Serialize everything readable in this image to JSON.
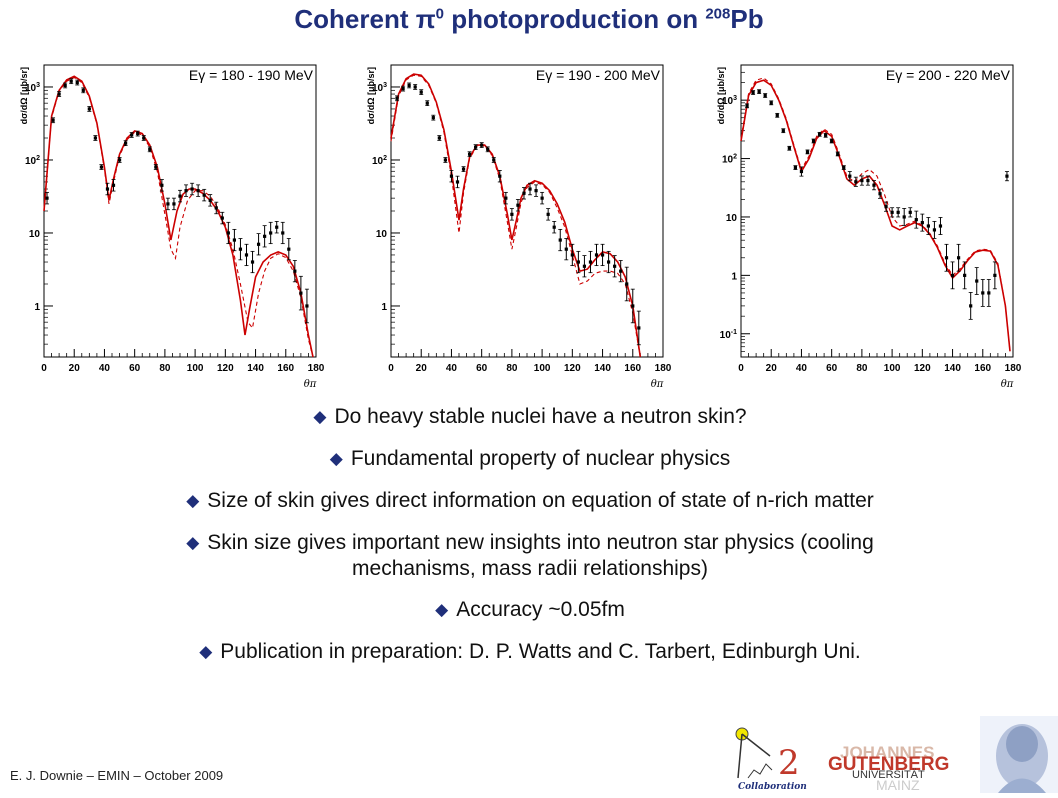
{
  "slide": {
    "title_main": "Coherent π",
    "title_sup1": "0",
    "title_mid": " photoproduction on ",
    "title_sup2": "208",
    "title_end": "Pb",
    "footer": "E. J. Downie – EMIN – October 2009"
  },
  "bullets": [
    {
      "line1": "Do heavy stable nuclei have a neutron skin?",
      "line2": ""
    },
    {
      "line1": "Fundamental property of nuclear physics",
      "line2": ""
    },
    {
      "line1": "Size of skin gives direct information on equation of state of n-rich matter",
      "line2": ""
    },
    {
      "line1": "Skin size gives important new insights into neutron star physics (cooling",
      "line2": "mechanisms, mass radii relationships)"
    },
    {
      "line1": "Accuracy ~0.05fm",
      "line2": ""
    },
    {
      "line1": "Publication in preparation: D. P. Watts and C. Tarbert, Edinburgh Uni.",
      "line2": ""
    }
  ],
  "logos": {
    "collab_number": "2",
    "collab_word": "Collaboration",
    "univ_line1": "JOHANNES",
    "univ_line2": "GUTENBERG",
    "univ_line3": "UNIVERSITÄT",
    "univ_line4": "MAINZ"
  },
  "colors": {
    "title": "#1f2f7a",
    "model_curve": "#cc0000",
    "data": "#000000"
  },
  "chart_data": [
    {
      "type": "scatter",
      "panel_label": "Eγ = 180 - 190 MeV",
      "xlabel": "θπ",
      "ylabel": "dσ/dΩ [μb/sr]",
      "xlim": [
        0,
        180
      ],
      "ylim": [
        0.2,
        2000
      ],
      "yscale": "log",
      "xticks": [
        0,
        20,
        40,
        60,
        80,
        100,
        120,
        140,
        160,
        180
      ],
      "yticks": [
        {
          "v": 1000,
          "base": "10",
          "exp": "3"
        },
        {
          "v": 100,
          "base": "10",
          "exp": "2"
        },
        {
          "v": 10,
          "base": "10",
          "exp": ""
        },
        {
          "v": 1,
          "base": "1",
          "exp": ""
        }
      ],
      "series": [
        {
          "kind": "data",
          "x": [
            2,
            6,
            10,
            14,
            18,
            22,
            26,
            30,
            34,
            38,
            42,
            46,
            50,
            54,
            58,
            62,
            66,
            70,
            74,
            78,
            82,
            86,
            90,
            94,
            98,
            102,
            106,
            110,
            114,
            118,
            122,
            126,
            130,
            134,
            138,
            142,
            146,
            150,
            154,
            158,
            162,
            166,
            170,
            174
          ],
          "y": [
            30,
            350,
            800,
            1050,
            1200,
            1150,
            900,
            500,
            200,
            80,
            40,
            45,
            100,
            170,
            220,
            230,
            200,
            140,
            80,
            45,
            25,
            25,
            32,
            38,
            40,
            38,
            33,
            28,
            22,
            16,
            10,
            8,
            6,
            5,
            4,
            7,
            9,
            10,
            12,
            10,
            6,
            3,
            1.5,
            1
          ]
        },
        {
          "kind": "model",
          "style": "solid",
          "x": [
            0,
            5,
            10,
            15,
            20,
            25,
            30,
            35,
            40,
            43,
            46,
            50,
            55,
            60,
            65,
            70,
            75,
            80,
            84,
            88,
            92,
            96,
            100,
            105,
            110,
            115,
            120,
            125,
            130,
            133,
            136,
            140,
            145,
            150,
            155,
            160,
            165,
            170,
            175,
            178
          ],
          "y": [
            20,
            400,
            900,
            1250,
            1400,
            1200,
            750,
            320,
            80,
            28,
            55,
            120,
            200,
            250,
            230,
            160,
            80,
            25,
            8,
            20,
            34,
            40,
            40,
            35,
            28,
            20,
            12,
            5,
            1.2,
            0.4,
            0.9,
            2.5,
            4,
            5,
            5.5,
            5,
            3.5,
            1.5,
            0.4,
            0.2
          ]
        },
        {
          "kind": "model",
          "style": "dashed",
          "x": [
            0,
            5,
            10,
            15,
            20,
            25,
            30,
            35,
            40,
            43,
            46,
            50,
            55,
            60,
            65,
            70,
            75,
            80,
            84,
            87,
            90,
            95,
            100,
            105,
            110,
            115,
            120,
            125,
            130,
            135,
            138,
            142,
            146,
            150,
            155,
            160,
            165,
            170,
            175,
            178
          ],
          "y": [
            20,
            380,
            880,
            1200,
            1350,
            1150,
            720,
            310,
            75,
            25,
            50,
            115,
            190,
            240,
            220,
            150,
            70,
            18,
            6,
            4.5,
            12,
            28,
            38,
            38,
            32,
            22,
            13,
            6,
            2,
            0.6,
            0.5,
            1.5,
            3,
            4.5,
            5.2,
            4.6,
            3,
            1.3,
            0.35,
            0.2
          ]
        }
      ]
    },
    {
      "type": "scatter",
      "panel_label": "Eγ = 190 - 200 MeV",
      "xlabel": "θπ",
      "ylabel": "dσ/dΩ [μb/sr]",
      "xlim": [
        0,
        180
      ],
      "ylim": [
        0.2,
        2000
      ],
      "yscale": "log",
      "xticks": [
        0,
        20,
        40,
        60,
        80,
        100,
        120,
        140,
        160,
        180
      ],
      "yticks": [
        {
          "v": 1000,
          "base": "10",
          "exp": "3"
        },
        {
          "v": 100,
          "base": "10",
          "exp": "2"
        },
        {
          "v": 10,
          "base": "10",
          "exp": ""
        },
        {
          "v": 1,
          "base": "1",
          "exp": ""
        }
      ],
      "series": [
        {
          "kind": "data",
          "x": [
            4,
            8,
            12,
            16,
            20,
            24,
            28,
            32,
            36,
            40,
            44,
            48,
            52,
            56,
            60,
            64,
            68,
            72,
            76,
            80,
            84,
            88,
            92,
            96,
            100,
            104,
            108,
            112,
            116,
            120,
            124,
            128,
            132,
            136,
            140,
            144,
            148,
            152,
            156,
            160,
            164
          ],
          "y": [
            700,
            950,
            1050,
            1000,
            850,
            600,
            380,
            200,
            100,
            60,
            50,
            75,
            120,
            150,
            160,
            140,
            100,
            60,
            30,
            18,
            24,
            35,
            40,
            38,
            30,
            18,
            12,
            8,
            6,
            5,
            4,
            3.5,
            4,
            5,
            5,
            4,
            3.5,
            3,
            2,
            1,
            0.5
          ]
        },
        {
          "kind": "model",
          "style": "solid",
          "x": [
            0,
            5,
            10,
            15,
            20,
            25,
            30,
            35,
            40,
            45,
            48,
            52,
            57,
            62,
            67,
            72,
            77,
            80,
            83,
            86,
            90,
            95,
            100,
            105,
            110,
            115,
            120,
            125,
            130,
            135,
            140,
            145,
            150,
            155,
            160,
            165
          ],
          "y": [
            200,
            800,
            1300,
            1500,
            1450,
            1100,
            620,
            260,
            70,
            15,
            40,
            110,
            160,
            160,
            120,
            60,
            18,
            8,
            15,
            30,
            45,
            52,
            48,
            38,
            25,
            14,
            6,
            3,
            3.2,
            4.3,
            5.5,
            5.2,
            4,
            2.5,
            1,
            0.2
          ]
        },
        {
          "kind": "model",
          "style": "dashed",
          "x": [
            0,
            5,
            10,
            15,
            20,
            25,
            30,
            35,
            40,
            45,
            48,
            52,
            57,
            62,
            67,
            72,
            77,
            80,
            83,
            86,
            90,
            95,
            100,
            105,
            110,
            115,
            120,
            125,
            130,
            135,
            140,
            145,
            150,
            155,
            160,
            165
          ],
          "y": [
            180,
            750,
            1250,
            1450,
            1400,
            1050,
            600,
            240,
            60,
            10,
            35,
            105,
            155,
            155,
            115,
            55,
            14,
            6,
            12,
            26,
            42,
            50,
            46,
            36,
            22,
            12,
            5,
            2,
            2.2,
            2.8,
            3,
            3,
            2.8,
            2,
            0.8,
            0.2
          ]
        }
      ]
    },
    {
      "type": "scatter",
      "panel_label": "Eγ = 200 - 220 MeV",
      "xlabel": "θπ",
      "ylabel": "dσ/dΩ [μb/sr]",
      "xlim": [
        0,
        180
      ],
      "ylim": [
        0.04,
        4000
      ],
      "yscale": "log",
      "xticks": [
        0,
        20,
        40,
        60,
        80,
        100,
        120,
        140,
        160,
        180
      ],
      "yticks": [
        {
          "v": 1000,
          "base": "10",
          "exp": "3"
        },
        {
          "v": 100,
          "base": "10",
          "exp": "2"
        },
        {
          "v": 10,
          "base": "10",
          "exp": ""
        },
        {
          "v": 1,
          "base": "1",
          "exp": ""
        },
        {
          "v": 0.1,
          "base": "10",
          "exp": "-1"
        }
      ],
      "series": [
        {
          "kind": "data",
          "x": [
            4,
            8,
            12,
            16,
            20,
            24,
            28,
            32,
            36,
            40,
            44,
            48,
            52,
            56,
            60,
            64,
            68,
            72,
            76,
            80,
            84,
            88,
            92,
            96,
            100,
            104,
            108,
            112,
            116,
            120,
            124,
            128,
            132,
            136,
            140,
            144,
            148,
            152,
            156,
            160,
            164,
            168,
            176
          ],
          "y": [
            800,
            1350,
            1400,
            1200,
            900,
            550,
            300,
            150,
            70,
            60,
            130,
            200,
            260,
            250,
            200,
            120,
            70,
            50,
            40,
            42,
            42,
            35,
            25,
            15,
            12,
            12,
            10,
            12,
            9,
            8,
            7,
            6,
            7,
            2,
            1,
            2,
            1,
            0.3,
            0.8,
            0.5,
            0.5,
            1,
            50
          ]
        },
        {
          "kind": "model",
          "style": "solid",
          "x": [
            0,
            5,
            10,
            15,
            20,
            25,
            30,
            35,
            40,
            45,
            50,
            55,
            60,
            65,
            70,
            75,
            80,
            85,
            90,
            95,
            100,
            105,
            110,
            115,
            120,
            125,
            130,
            135,
            140,
            145,
            150,
            155,
            160,
            165,
            170,
            175,
            178
          ],
          "y": [
            200,
            1200,
            2000,
            2200,
            1800,
            1000,
            450,
            160,
            60,
            100,
            220,
            300,
            240,
            110,
            45,
            35,
            45,
            50,
            35,
            16,
            7,
            6,
            7,
            8,
            7,
            5,
            3,
            1.5,
            0.9,
            1.2,
            1.8,
            2.5,
            2.7,
            2.6,
            1.5,
            0.3,
            0.05
          ]
        },
        {
          "kind": "model",
          "style": "dashed",
          "x": [
            0,
            5,
            10,
            15,
            20,
            25,
            30,
            35,
            40,
            45,
            50,
            55,
            60,
            65,
            70,
            75,
            80,
            85,
            90,
            95,
            100,
            105,
            110,
            115,
            120,
            125,
            130,
            135,
            140,
            145,
            150,
            155,
            160,
            165,
            170,
            175,
            178
          ],
          "y": [
            220,
            1300,
            2200,
            2400,
            1900,
            1050,
            480,
            170,
            65,
            110,
            240,
            320,
            260,
            120,
            50,
            40,
            55,
            65,
            50,
            24,
            10,
            7,
            7.5,
            8.5,
            7.2,
            5.2,
            3.2,
            1.6,
            1,
            1.3,
            1.9,
            2.6,
            2.8,
            2.7,
            1.6,
            0.3,
            0.05
          ]
        }
      ]
    }
  ]
}
